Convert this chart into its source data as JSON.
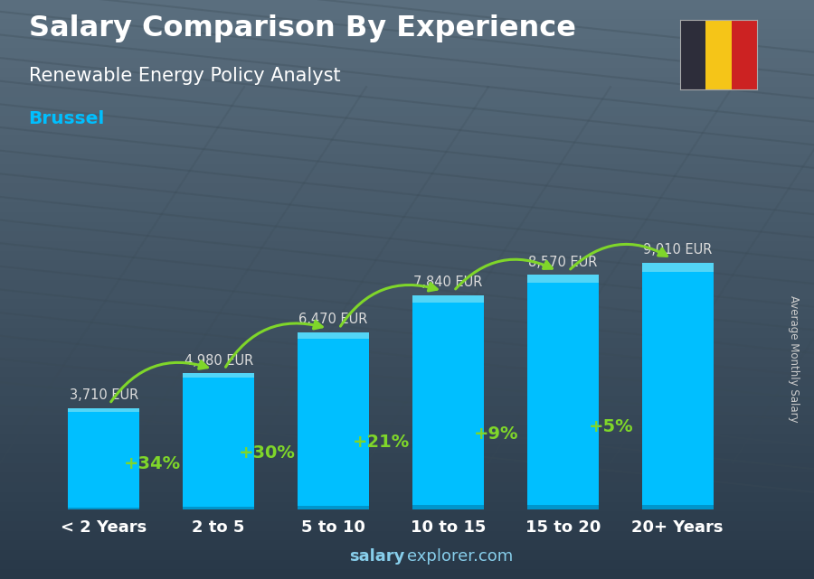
{
  "title_line1": "Salary Comparison By Experience",
  "title_line2": "Renewable Energy Policy Analyst",
  "city": "Brussel",
  "ylabel": "Average Monthly Salary",
  "categories": [
    "< 2 Years",
    "2 to 5",
    "5 to 10",
    "10 to 15",
    "15 to 20",
    "20+ Years"
  ],
  "values": [
    3710,
    4980,
    6470,
    7840,
    8570,
    9010
  ],
  "labels": [
    "3,710 EUR",
    "4,980 EUR",
    "6,470 EUR",
    "7,840 EUR",
    "8,570 EUR",
    "9,010 EUR"
  ],
  "pct_changes": [
    "+34%",
    "+30%",
    "+21%",
    "+9%",
    "+5%"
  ],
  "bar_color_main": "#00BFFF",
  "bar_color_top": "#5DD8F5",
  "bar_color_dark": "#0095CC",
  "pct_color": "#7FD62A",
  "label_color": "#DDDDDD",
  "title_color": "#FFFFFF",
  "city_color": "#00BFFF",
  "bg_top": "#5a6e7e",
  "bg_bottom": "#2a3540",
  "footer_bold": "salary",
  "footer_normal": "explorer.com",
  "flag_black": "#2d2d3a",
  "flag_yellow": "#F5C518",
  "flag_red": "#CC2222",
  "ylim_max": 11000,
  "bar_width": 0.62
}
